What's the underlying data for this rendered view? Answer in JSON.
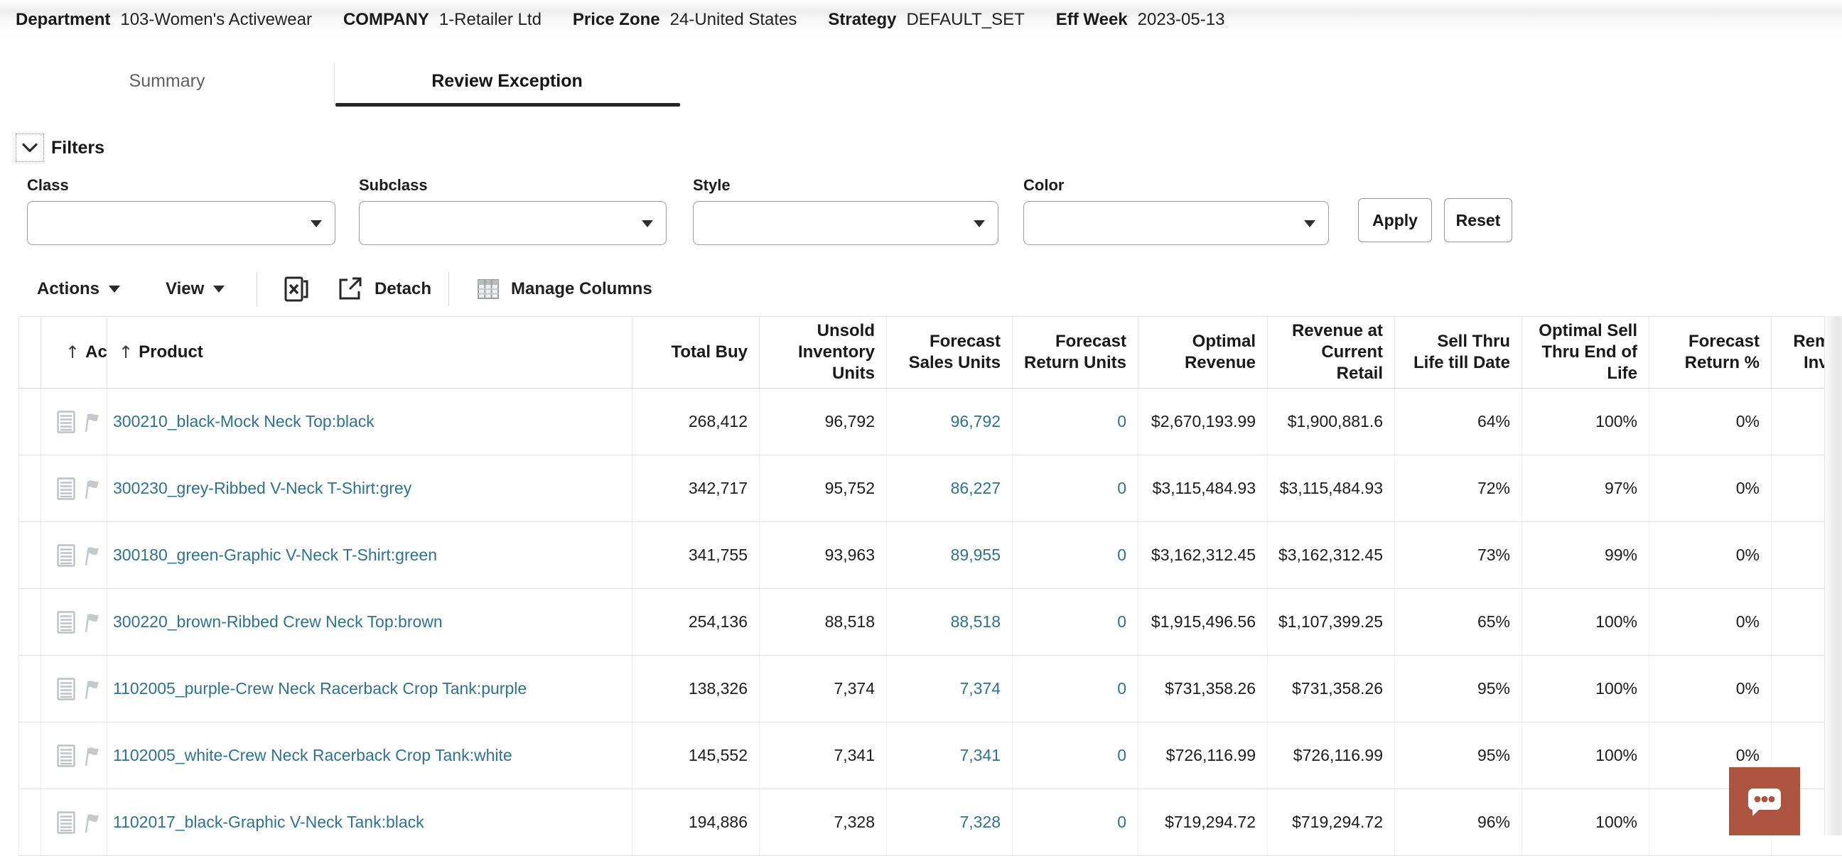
{
  "context_bar": {
    "items": [
      {
        "label": "Department",
        "value": "103-Women's Activewear"
      },
      {
        "label": "COMPANY",
        "value": "1-Retailer Ltd"
      },
      {
        "label": "Price Zone",
        "value": "24-United States"
      },
      {
        "label": "Strategy",
        "value": "DEFAULT_SET"
      },
      {
        "label": "Eff Week",
        "value": "2023-05-13"
      }
    ]
  },
  "tabs": [
    {
      "label": "Summary",
      "active": false
    },
    {
      "label": "Review Exception",
      "active": true
    }
  ],
  "filters": {
    "title": "Filters",
    "fields": [
      {
        "label": "Class",
        "value": ""
      },
      {
        "label": "Subclass",
        "value": ""
      },
      {
        "label": "Style",
        "value": ""
      },
      {
        "label": "Color",
        "value": ""
      }
    ],
    "apply_label": "Apply",
    "reset_label": "Reset"
  },
  "toolbar": {
    "actions_label": "Actions",
    "view_label": "View",
    "detach_label": "Detach",
    "manage_columns_label": "Manage Columns"
  },
  "table": {
    "columns": [
      {
        "key": "select",
        "label": "",
        "sortable": false
      },
      {
        "key": "action",
        "label": "Action",
        "sortable": true
      },
      {
        "key": "product",
        "label": "Product",
        "sortable": true
      },
      {
        "key": "total_buy",
        "label": "Total Buy",
        "sortable": false
      },
      {
        "key": "unsold",
        "label": "Unsold\nInventory\nUnits",
        "sortable": false
      },
      {
        "key": "fc_sales",
        "label": "Forecast\nSales Units",
        "sortable": false
      },
      {
        "key": "fc_return",
        "label": "Forecast\nReturn Units",
        "sortable": false
      },
      {
        "key": "optimal_rev",
        "label": "Optimal\nRevenue",
        "sortable": false
      },
      {
        "key": "rev_current",
        "label": "Revenue at\nCurrent\nRetail",
        "sortable": false
      },
      {
        "key": "sell_thru",
        "label": "Sell Thru\nLife till Date",
        "sortable": false
      },
      {
        "key": "opt_sell_thru",
        "label": "Optimal Sell\nThru End of\nLife",
        "sortable": false
      },
      {
        "key": "fc_return_pct",
        "label": "Forecast\nReturn %",
        "sortable": false
      },
      {
        "key": "rem_inv",
        "label": "Remaining\nInventory",
        "sortable": false
      }
    ],
    "rows": [
      {
        "product": "300210_black-Mock Neck Top:black",
        "total_buy": "268,412",
        "unsold": "96,792",
        "fc_sales": "96,792",
        "fc_return": "0",
        "optimal_rev": "$2,670,193.99",
        "rev_current": "$1,900,881.6",
        "sell_thru": "64%",
        "opt_sell_thru": "100%",
        "fc_return_pct": "0%",
        "rem_inv": ""
      },
      {
        "product": "300230_grey-Ribbed V-Neck T-Shirt:grey",
        "total_buy": "342,717",
        "unsold": "95,752",
        "fc_sales": "86,227",
        "fc_return": "0",
        "optimal_rev": "$3,115,484.93",
        "rev_current": "$3,115,484.93",
        "sell_thru": "72%",
        "opt_sell_thru": "97%",
        "fc_return_pct": "0%",
        "rem_inv": ""
      },
      {
        "product": "300180_green-Graphic V-Neck T-Shirt:green",
        "total_buy": "341,755",
        "unsold": "93,963",
        "fc_sales": "89,955",
        "fc_return": "0",
        "optimal_rev": "$3,162,312.45",
        "rev_current": "$3,162,312.45",
        "sell_thru": "73%",
        "opt_sell_thru": "99%",
        "fc_return_pct": "0%",
        "rem_inv": ""
      },
      {
        "product": "300220_brown-Ribbed Crew Neck Top:brown",
        "total_buy": "254,136",
        "unsold": "88,518",
        "fc_sales": "88,518",
        "fc_return": "0",
        "optimal_rev": "$1,915,496.56",
        "rev_current": "$1,107,399.25",
        "sell_thru": "65%",
        "opt_sell_thru": "100%",
        "fc_return_pct": "0%",
        "rem_inv": ""
      },
      {
        "product": "1102005_purple-Crew Neck Racerback Crop Tank:purple",
        "total_buy": "138,326",
        "unsold": "7,374",
        "fc_sales": "7,374",
        "fc_return": "0",
        "optimal_rev": "$731,358.26",
        "rev_current": "$731,358.26",
        "sell_thru": "95%",
        "opt_sell_thru": "100%",
        "fc_return_pct": "0%",
        "rem_inv": ""
      },
      {
        "product": "1102005_white-Crew Neck Racerback Crop Tank:white",
        "total_buy": "145,552",
        "unsold": "7,341",
        "fc_sales": "7,341",
        "fc_return": "0",
        "optimal_rev": "$726,116.99",
        "rev_current": "$726,116.99",
        "sell_thru": "95%",
        "opt_sell_thru": "100%",
        "fc_return_pct": "0%",
        "rem_inv": ""
      },
      {
        "product": "1102017_black-Graphic V-Neck Tank:black",
        "total_buy": "194,886",
        "unsold": "7,328",
        "fc_sales": "7,328",
        "fc_return": "0",
        "optimal_rev": "$719,294.72",
        "rev_current": "$719,294.72",
        "sell_thru": "96%",
        "opt_sell_thru": "100%",
        "fc_return_pct": "0%",
        "rem_inv": ""
      }
    ]
  },
  "icons": {
    "filters_toggle": "chevron-down-icon",
    "sort": "arrow-up-icon",
    "export": "excel-export-icon",
    "detach": "detach-icon",
    "manage_columns": "manage-columns-grid-icon",
    "row_action_icons": [
      "document-icon",
      "flag-icon"
    ],
    "chat": "chat-bubble-icon"
  },
  "colors": {
    "link": "#2d7291",
    "active_tab_underline": "#2a2620",
    "chat_button": "#ad5441"
  },
  "sort_arrow_glyph": "↑"
}
